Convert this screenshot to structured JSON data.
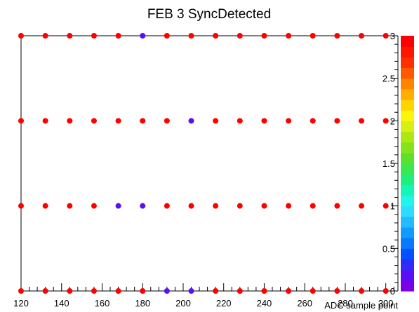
{
  "chart_data": {
    "type": "scatter",
    "title": "FEB 3 SyncDetected",
    "xlabel": "ADC sample point",
    "ylabel": "",
    "xlim": [
      120,
      306
    ],
    "ylim": [
      0,
      3
    ],
    "x_ticks": [
      120,
      140,
      160,
      180,
      200,
      220,
      240,
      260,
      280,
      300
    ],
    "y_ticks": [],
    "grid": false,
    "colorbar": {
      "min": 0,
      "max": 3,
      "ticks": [
        "0",
        "0.5",
        "1",
        "1.5",
        "2",
        "2.5",
        "3"
      ],
      "colors": [
        "#7b00e6",
        "#5a10f5",
        "#2f2cfa",
        "#0051ff",
        "#0a78ff",
        "#129bff",
        "#22bbff",
        "#2ddcff",
        "#20f5ea",
        "#15f5b5",
        "#1ef07e",
        "#3be84e",
        "#5ee02a",
        "#86e21a",
        "#aee814",
        "#d5f012",
        "#fbf509",
        "#ffd400",
        "#ffae00",
        "#ff8500",
        "#ff5a00",
        "#ff3000",
        "#ff1500",
        "#ff0000"
      ]
    },
    "x": [
      120,
      132,
      144,
      156,
      168,
      180,
      192,
      204,
      216,
      228,
      240,
      252,
      264,
      276,
      288,
      300
    ],
    "series": [
      {
        "y": 3,
        "values": [
          3,
          3,
          3,
          3,
          3,
          0.2,
          3,
          3,
          3,
          3,
          3,
          3,
          3,
          3,
          3,
          3
        ]
      },
      {
        "y": 2,
        "values": [
          3,
          3,
          3,
          3,
          3,
          3,
          3,
          0.2,
          3,
          3,
          3,
          3,
          3,
          3,
          3,
          3
        ]
      },
      {
        "y": 1,
        "values": [
          3,
          3,
          3,
          3,
          0.2,
          0.2,
          3,
          3,
          3,
          3,
          3,
          3,
          3,
          3,
          3,
          3
        ]
      },
      {
        "y": 0,
        "values": [
          3,
          3,
          3,
          3,
          3,
          3,
          0.2,
          0.2,
          3,
          3,
          3,
          3,
          3,
          3,
          3,
          3
        ]
      }
    ]
  }
}
